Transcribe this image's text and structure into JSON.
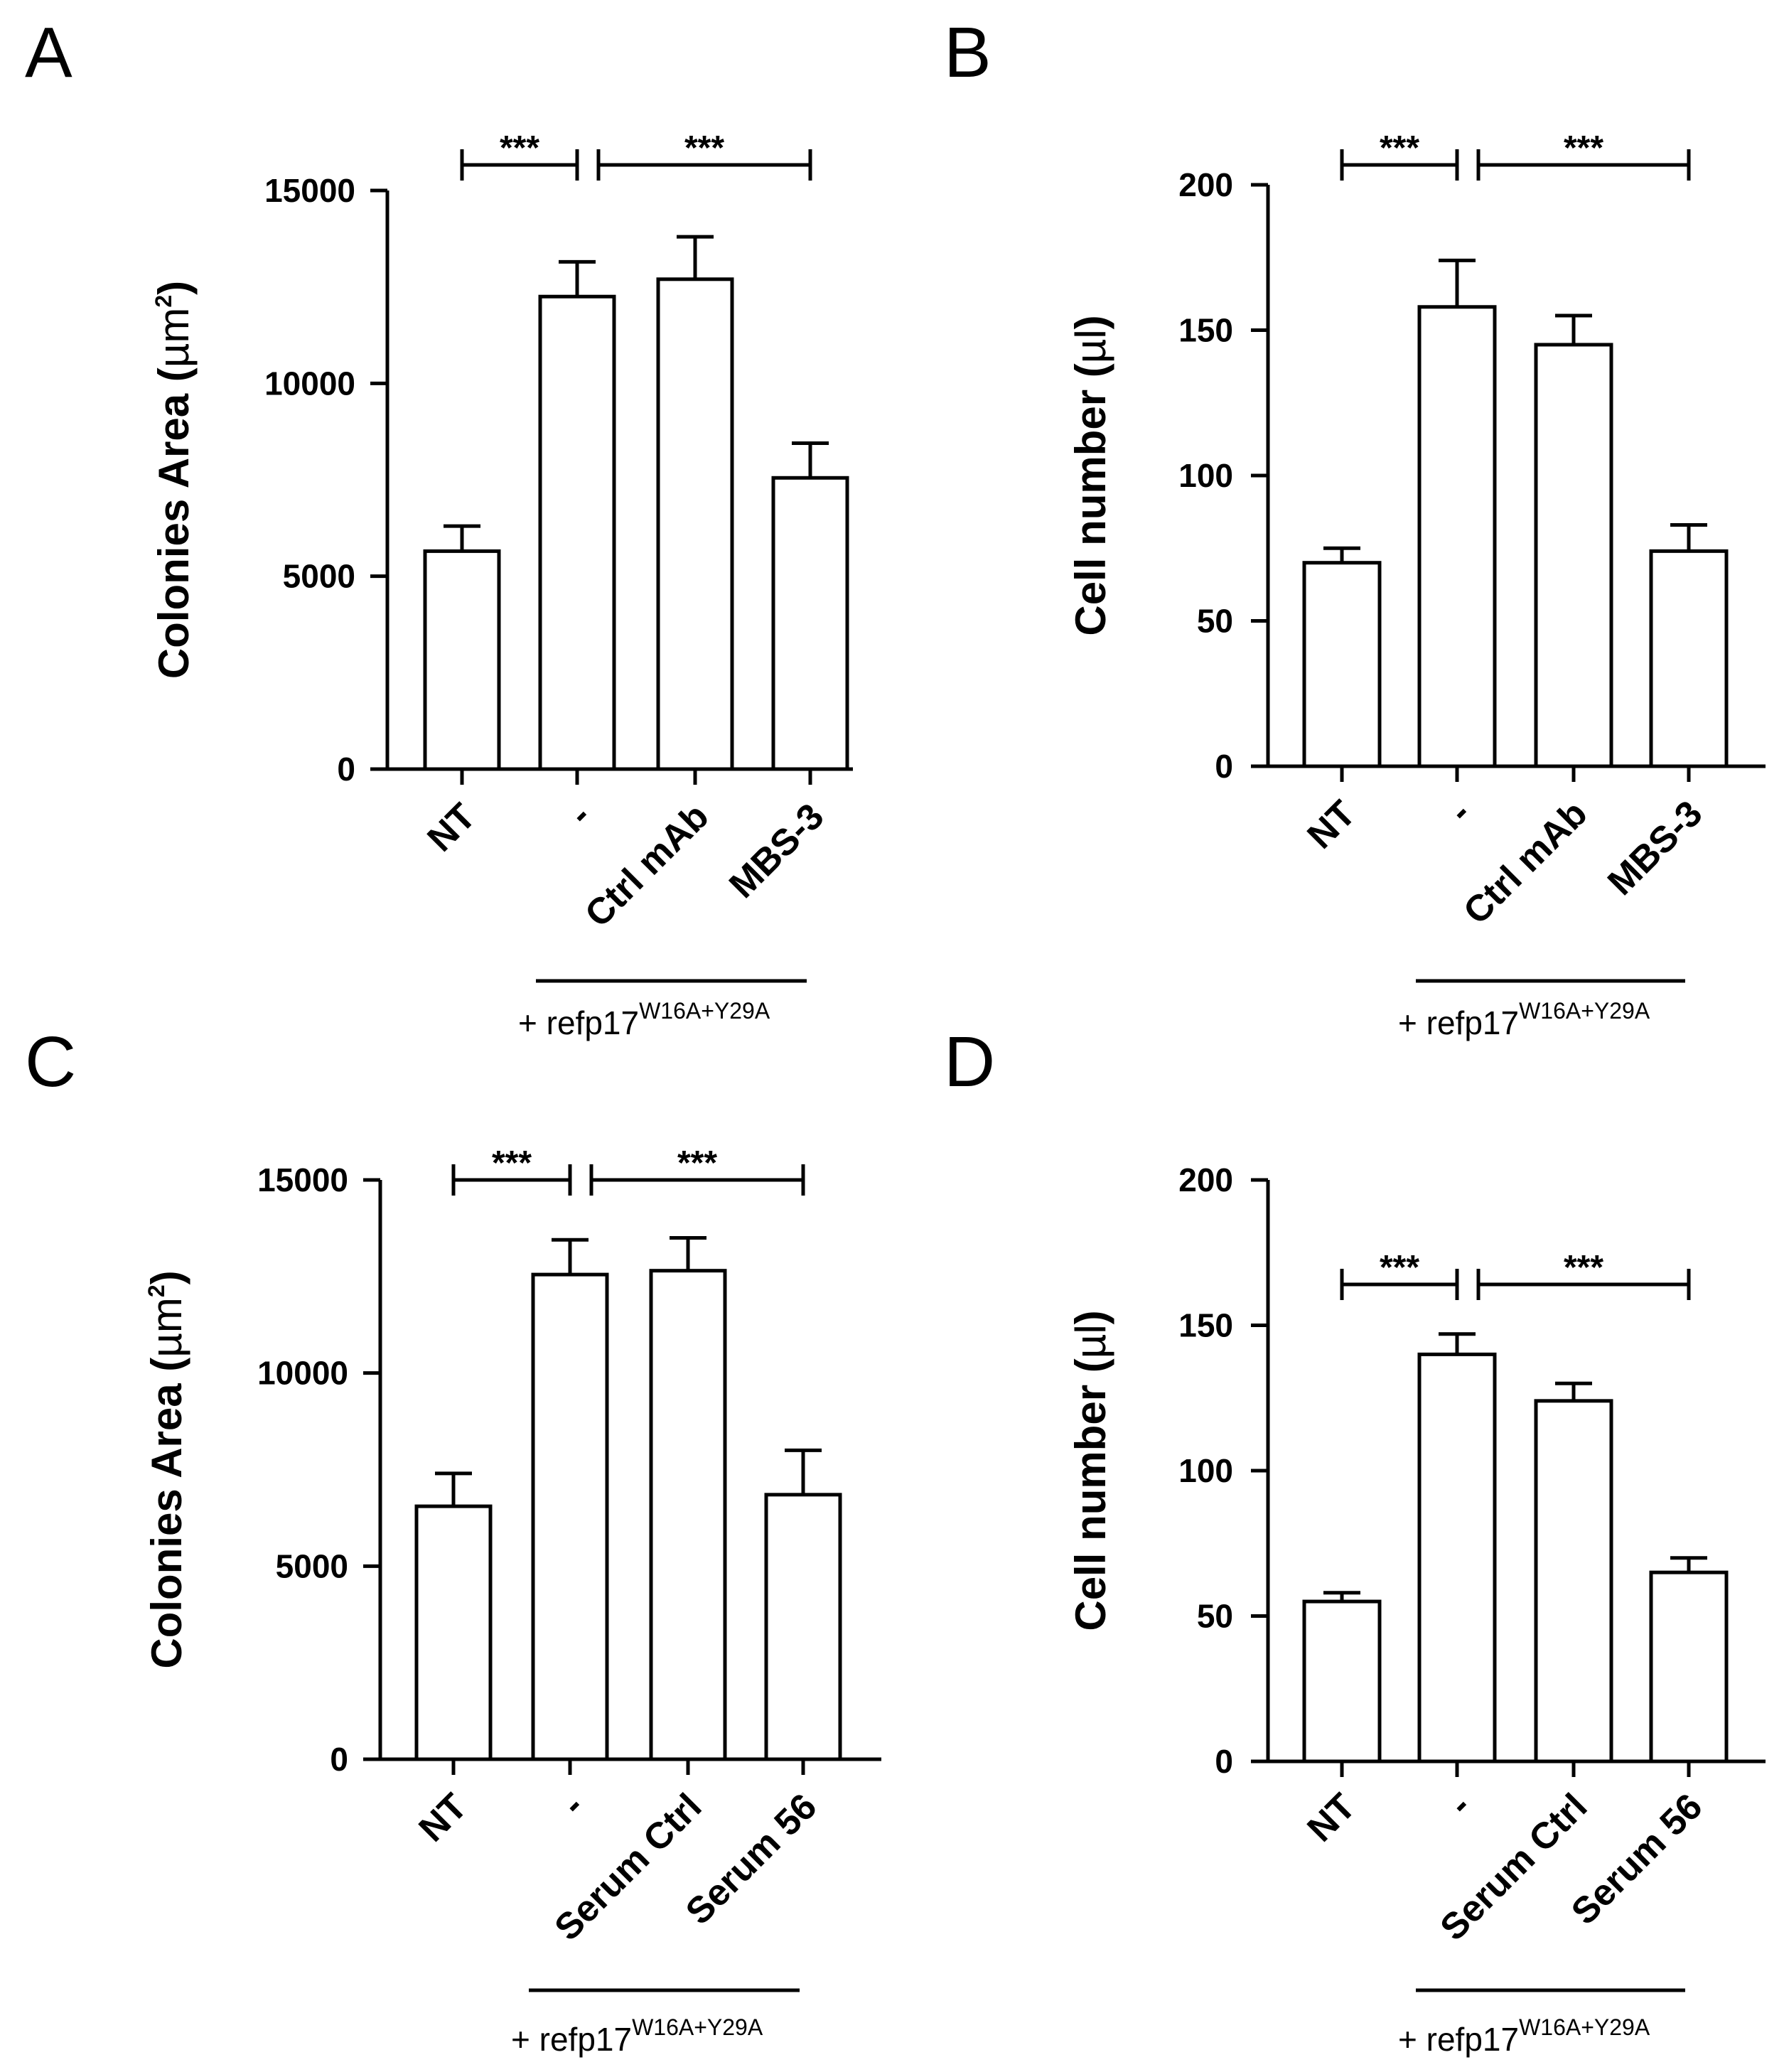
{
  "chart_data": [
    {
      "panel": "A",
      "type": "bar",
      "ylabel": "Colonies Area (",
      "ylabel_unit": "µm",
      "ylabel_sup": "2",
      "ylabel_tail": ")",
      "ylim": [
        0,
        15000
      ],
      "yticks": [
        0,
        5000,
        10000,
        15000
      ],
      "ytick_labels": [
        "0",
        "5000",
        "10000",
        "15000"
      ],
      "categories": [
        "NT",
        "-",
        "Ctrl mAb",
        "MBS-3"
      ],
      "values": [
        5650,
        12250,
        12700,
        7550
      ],
      "errors": [
        650,
        900,
        1100,
        900
      ],
      "significance": [
        {
          "from": 0,
          "to": 1,
          "label": "***"
        },
        {
          "from": 1,
          "to": 3,
          "label": "***"
        }
      ],
      "treatment": {
        "prefix": "+ refp17",
        "sup": "W16A+Y29A",
        "from": 1,
        "to": 3
      }
    },
    {
      "panel": "B",
      "type": "bar",
      "ylabel": "Cell number (",
      "ylabel_unit": "µl",
      "ylabel_sup": "",
      "ylabel_tail": ")",
      "ylim": [
        0,
        200
      ],
      "yticks": [
        0,
        50,
        100,
        150,
        200
      ],
      "ytick_labels": [
        "0",
        "50",
        "100",
        "150",
        "200"
      ],
      "categories": [
        "NT",
        "-",
        "Ctrl mAb",
        "MBS-3"
      ],
      "values": [
        70,
        158,
        145,
        74
      ],
      "errors": [
        5,
        16,
        10,
        9
      ],
      "significance": [
        {
          "from": 0,
          "to": 1,
          "label": "***"
        },
        {
          "from": 1,
          "to": 3,
          "label": "***"
        }
      ],
      "treatment": {
        "prefix": "+ refp17",
        "sup": "W16A+Y29A",
        "from": 1,
        "to": 3
      }
    },
    {
      "panel": "C",
      "type": "bar",
      "ylabel": "Colonies Area (",
      "ylabel_unit": "µm",
      "ylabel_sup": "2",
      "ylabel_tail": ")",
      "ylim": [
        0,
        15000
      ],
      "yticks": [
        0,
        5000,
        10000,
        15000
      ],
      "ytick_labels": [
        "0",
        "5000",
        "10000",
        "15000"
      ],
      "categories": [
        "NT",
        "-",
        "Serum Ctrl",
        "Serum 56"
      ],
      "values": [
        6550,
        12550,
        12650,
        6850
      ],
      "errors": [
        850,
        900,
        850,
        1150
      ],
      "significance": [
        {
          "from": 0,
          "to": 1,
          "label": "***"
        },
        {
          "from": 1,
          "to": 3,
          "label": "***"
        }
      ],
      "treatment": {
        "prefix": "+ refp17",
        "sup": "W16A+Y29A",
        "from": 1,
        "to": 3
      }
    },
    {
      "panel": "D",
      "type": "bar",
      "ylabel": "Cell number (",
      "ylabel_unit": "µl",
      "ylabel_sup": "",
      "ylabel_tail": ")",
      "ylim": [
        0,
        200
      ],
      "yticks": [
        0,
        50,
        100,
        150,
        200
      ],
      "ytick_labels": [
        "0",
        "50",
        "100",
        "150",
        "200"
      ],
      "categories": [
        "NT",
        "-",
        "Serum Ctrl",
        "Serum 56"
      ],
      "values": [
        55,
        140,
        124,
        65
      ],
      "errors": [
        3,
        7,
        6,
        5
      ],
      "significance": [
        {
          "from": 0,
          "to": 1,
          "label": "***"
        },
        {
          "from": 1,
          "to": 3,
          "label": "***"
        }
      ],
      "treatment": {
        "prefix": "+ refp17",
        "sup": "W16A+Y29A",
        "from": 1,
        "to": 3
      }
    }
  ]
}
